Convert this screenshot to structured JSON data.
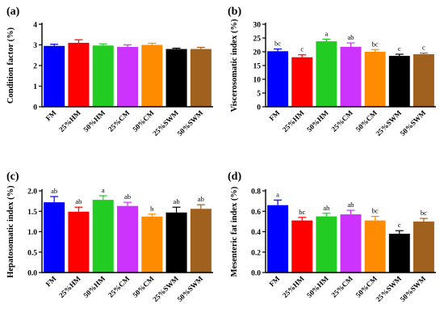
{
  "colors": {
    "bars": [
      "#0000ff",
      "#ff0000",
      "#22cc22",
      "#cc33ff",
      "#ff8c00",
      "#000000",
      "#a0601e"
    ]
  },
  "chart_data": [
    {
      "type": "bar",
      "panel_label": "(a)",
      "ylabel": "Condition factor (%)",
      "categories": [
        "FM",
        "25%HM",
        "50%HM",
        "25%CM",
        "50%CM",
        "25%SWM",
        "50%SWM"
      ],
      "values": [
        2.95,
        3.1,
        2.97,
        2.9,
        3.0,
        2.8,
        2.8
      ],
      "errors": [
        0.08,
        0.15,
        0.08,
        0.1,
        0.08,
        0.04,
        0.08
      ],
      "significance": [
        "",
        "",
        "",
        "",
        "",
        "",
        ""
      ],
      "ylim": [
        0,
        4
      ],
      "yticks": [
        0,
        1,
        2,
        3,
        4
      ]
    },
    {
      "type": "bar",
      "panel_label": "(b)",
      "ylabel": "Viscerosomatic index (%)",
      "categories": [
        "FM",
        "25%HM",
        "50%HM",
        "25%CM",
        "50%CM",
        "25%SWM",
        "50%SWM"
      ],
      "values": [
        20.2,
        18.0,
        23.8,
        21.8,
        20.0,
        18.5,
        19.1
      ],
      "errors": [
        0.8,
        0.9,
        0.8,
        1.4,
        0.8,
        0.6,
        0.4
      ],
      "significance": [
        "bc",
        "c",
        "a",
        "ab",
        "bc",
        "c",
        "c"
      ],
      "ylim": [
        0,
        30
      ],
      "yticks": [
        0,
        5,
        10,
        15,
        20,
        25,
        30
      ]
    },
    {
      "type": "bar",
      "panel_label": "(c)",
      "ylabel": "Hepatosomatic index (%)",
      "categories": [
        "FM",
        "25%HM",
        "50%HM",
        "25%CM",
        "50%CM",
        "25%SWM",
        "50%SWM"
      ],
      "values": [
        1.72,
        1.49,
        1.78,
        1.63,
        1.37,
        1.47,
        1.56
      ],
      "errors": [
        0.14,
        0.11,
        0.1,
        0.09,
        0.06,
        0.13,
        0.1
      ],
      "significance": [
        "ab",
        "ab",
        "a",
        "ab",
        "b",
        "ab",
        "ab"
      ],
      "ylim": [
        0,
        2.0
      ],
      "yticks": [
        0.0,
        0.5,
        1.0,
        1.5,
        2.0
      ]
    },
    {
      "type": "bar",
      "panel_label": "(d)",
      "ylabel": "Mesenteric fat index (%)",
      "categories": [
        "FM",
        "25%HM",
        "50%HM",
        "25%CM",
        "50%CM",
        "25%SWM",
        "50%SWM"
      ],
      "values": [
        0.66,
        0.51,
        0.55,
        0.57,
        0.51,
        0.38,
        0.5
      ],
      "errors": [
        0.05,
        0.03,
        0.03,
        0.04,
        0.04,
        0.03,
        0.03
      ],
      "significance": [
        "a",
        "bc",
        "ab",
        "ab",
        "bc",
        "c",
        "bc"
      ],
      "ylim": [
        0,
        0.8
      ],
      "yticks": [
        0.0,
        0.2,
        0.4,
        0.6,
        0.8
      ]
    }
  ]
}
